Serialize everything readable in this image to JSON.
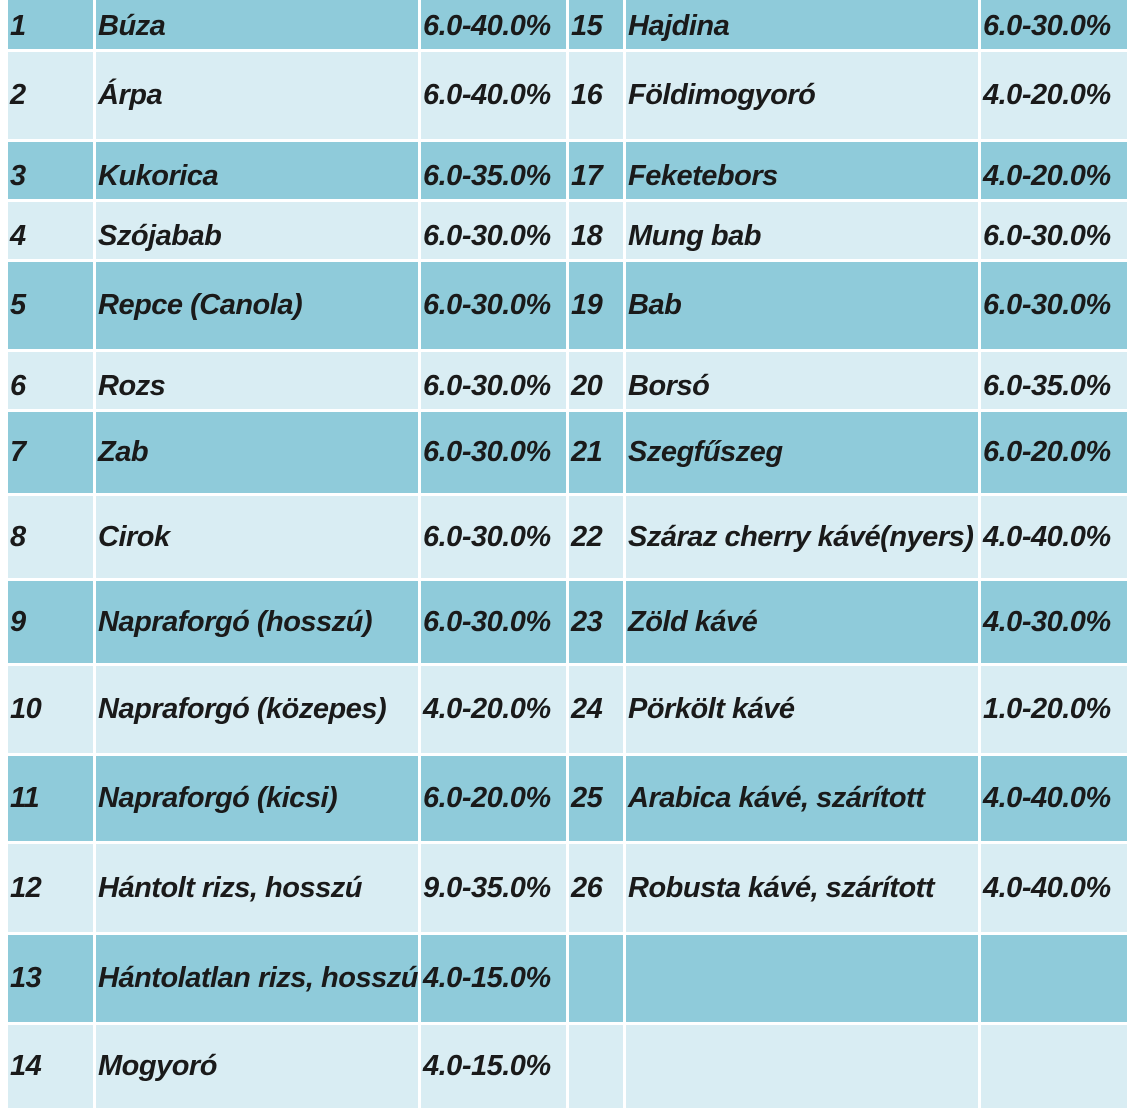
{
  "colors": {
    "dark_row": "#8fcbda",
    "light_row": "#d9edf3",
    "text": "#1a1a1a"
  },
  "rows": [
    {
      "n1": "1",
      "name1": "Búza",
      "pct1": "6.0-40.0%",
      "n2": "15",
      "name2": "Hajdina",
      "pct2": "6.0-30.0%"
    },
    {
      "n1": "2",
      "name1": "Árpa",
      "pct1": "6.0-40.0%",
      "n2": "16",
      "name2": "Földimogyoró",
      "pct2": "4.0-20.0%"
    },
    {
      "n1": "3",
      "name1": "Kukorica",
      "pct1": "6.0-35.0%",
      "n2": "17",
      "name2": "Feketebors",
      "pct2": "4.0-20.0%"
    },
    {
      "n1": "4",
      "name1": "Szójabab",
      "pct1": "6.0-30.0%",
      "n2": "18",
      "name2": "Mung bab",
      "pct2": "6.0-30.0%"
    },
    {
      "n1": "5",
      "name1": "Repce (Canola)",
      "pct1": "6.0-30.0%",
      "n2": "19",
      "name2": "Bab",
      "pct2": "6.0-30.0%"
    },
    {
      "n1": "6",
      "name1": "Rozs",
      "pct1": "6.0-30.0%",
      "n2": "20",
      "name2": "Borsó",
      "pct2": "6.0-35.0%"
    },
    {
      "n1": "7",
      "name1": "Zab",
      "pct1": "6.0-30.0%",
      "n2": "21",
      "name2": "Szegfűszeg",
      "pct2": "6.0-20.0%"
    },
    {
      "n1": "8",
      "name1": "Cirok",
      "pct1": "6.0-30.0%",
      "n2": "22",
      "name2": "Száraz cherry kávé(nyers)",
      "pct2": "4.0-40.0%"
    },
    {
      "n1": "9",
      "name1": "Napraforgó (hosszú)",
      "pct1": "6.0-30.0%",
      "n2": "23",
      "name2": "Zöld kávé",
      "pct2": "4.0-30.0%"
    },
    {
      "n1": "10",
      "name1": "Napraforgó (közepes)",
      "pct1": "4.0-20.0%",
      "n2": "24",
      "name2": "Pörkölt kávé",
      "pct2": "1.0-20.0%"
    },
    {
      "n1": "11",
      "name1": "Napraforgó (kicsi)",
      "pct1": "6.0-20.0%",
      "n2": "25",
      "name2": "Arabica kávé, szárított",
      "pct2": "4.0-40.0%"
    },
    {
      "n1": "12",
      "name1": "Hántolt rizs, hosszú",
      "pct1": "9.0-35.0%",
      "n2": "26",
      "name2": "Robusta kávé, szárított",
      "pct2": "4.0-40.0%"
    },
    {
      "n1": "13",
      "name1": "Hántolatlan rizs, hosszú",
      "pct1": "4.0-15.0%",
      "n2": "",
      "name2": "",
      "pct2": ""
    },
    {
      "n1": "14",
      "name1": "Mogyoró",
      "pct1": "4.0-15.0%",
      "n2": "",
      "name2": "",
      "pct2": ""
    }
  ]
}
